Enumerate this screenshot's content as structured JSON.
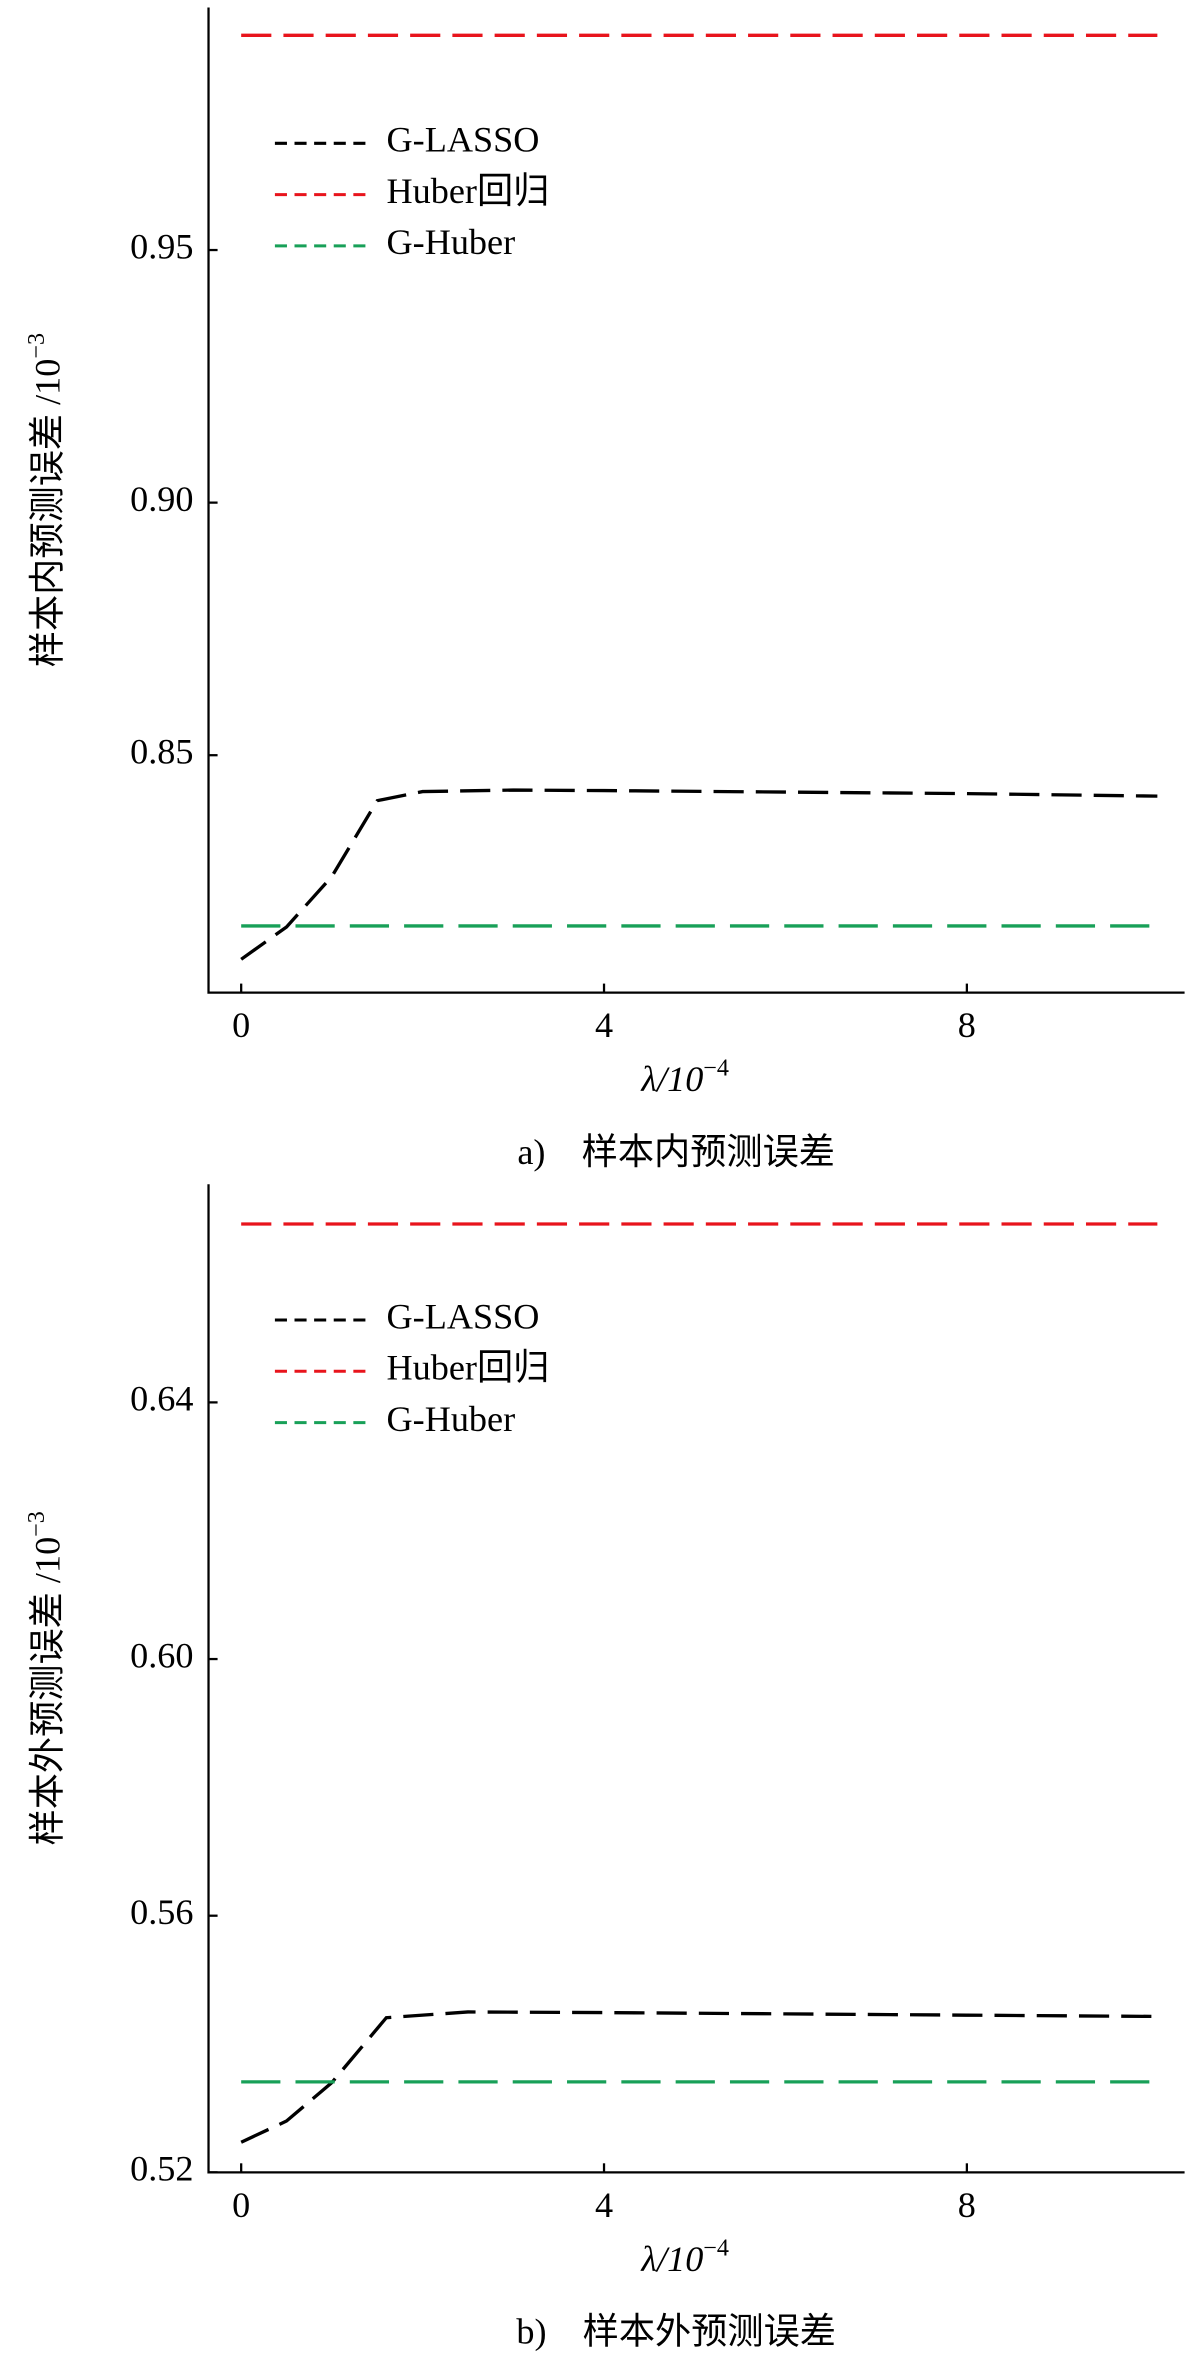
{
  "chart_data": [
    {
      "type": "line",
      "caption": "a)　样本内预测误差",
      "x_label": "λ/10",
      "x_label_exponent": "−4",
      "y_label": "样本内预测误差 /10",
      "y_label_exponent": "−3",
      "xlim": [
        -0.36,
        10.4
      ],
      "xticks": [
        0,
        4,
        8
      ],
      "ylim": [
        0.803,
        0.998
      ],
      "yticks": [
        {
          "value": 0.85,
          "label": "0.85"
        },
        {
          "value": 0.9,
          "label": "0.90"
        },
        {
          "value": 0.95,
          "label": "0.95"
        }
      ],
      "legend": "upper left",
      "x": [
        0,
        0.5,
        1,
        1.5,
        2,
        3,
        4,
        6,
        8,
        10.1
      ],
      "series": [
        {
          "name": "G-LASSO",
          "color": "#000000",
          "values": [
            0.8096,
            0.816,
            0.826,
            0.841,
            0.8428,
            0.8431,
            0.843,
            0.8427,
            0.8424,
            0.8419
          ]
        },
        {
          "name": "Huber回归",
          "color": "#e8141c",
          "values": [
            0.9925,
            0.9925,
            0.9925,
            0.9925,
            0.9925,
            0.9925,
            0.9925,
            0.9925,
            0.9925,
            0.9925
          ]
        },
        {
          "name": "G-Huber",
          "color": "#18a058",
          "values": [
            0.8162,
            0.8162,
            0.8162,
            0.8162,
            0.8162,
            0.8162,
            0.8162,
            0.8162,
            0.8162,
            0.8162
          ]
        }
      ]
    },
    {
      "type": "line",
      "caption": "b)　样本外预测误差",
      "x_label": "λ/10",
      "x_label_exponent": "−4",
      "y_label": "样本外预测误差 /10",
      "y_label_exponent": "−3",
      "xlim": [
        -0.36,
        10.4
      ],
      "xticks": [
        0,
        4,
        8
      ],
      "ylim": [
        0.52,
        0.674
      ],
      "yticks": [
        {
          "value": 0.52,
          "label": "0.52"
        },
        0.56,
        {
          "value": 0.6,
          "label": "0.60"
        },
        0.64
      ],
      "legend": "upper left",
      "x": [
        0,
        0.5,
        1,
        1.6,
        2.5,
        4,
        6,
        8,
        10.1
      ],
      "series": [
        {
          "name": "G-LASSO",
          "color": "#000000",
          "values": [
            0.5247,
            0.528,
            0.534,
            0.5441,
            0.545,
            0.5449,
            0.5447,
            0.5445,
            0.5443
          ]
        },
        {
          "name": "Huber回归",
          "color": "#e8141c",
          "values": [
            0.6678,
            0.6678,
            0.6678,
            0.6678,
            0.6678,
            0.6678,
            0.6678,
            0.6678,
            0.6678
          ]
        },
        {
          "name": "G-Huber",
          "color": "#18a058",
          "values": [
            0.5341,
            0.5341,
            0.5341,
            0.5341,
            0.5341,
            0.5341,
            0.5341,
            0.5341,
            0.5341
          ]
        }
      ]
    }
  ]
}
